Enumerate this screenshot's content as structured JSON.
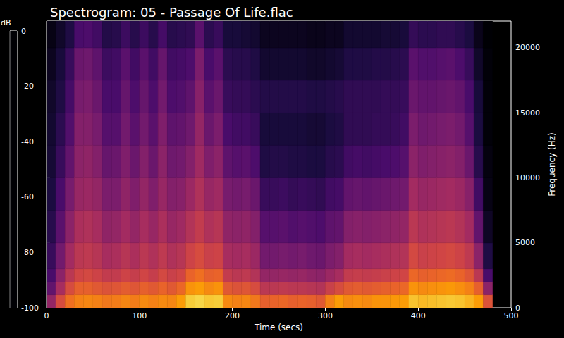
{
  "chart_data": {
    "type": "heatmap",
    "title": "Spectrogram: 05 - Passage Of Life.flac",
    "x_label": "Time (secs)",
    "y_label": "Frequency (Hz)",
    "xlim": [
      0,
      500
    ],
    "xticks": [
      0,
      100,
      200,
      300,
      400,
      500
    ],
    "ylim": [
      0,
      22050
    ],
    "yticks": [
      0,
      5000,
      10000,
      15000,
      20000
    ],
    "grid": false,
    "colorbar": {
      "label": "dB",
      "range": [
        -100,
        0
      ],
      "ticks": [
        0,
        -20,
        -40,
        -60,
        -80,
        -100
      ]
    },
    "cells": {
      "time_edges": [
        0,
        10,
        20,
        30,
        40,
        50,
        60,
        70,
        80,
        90,
        100,
        110,
        120,
        130,
        140,
        150,
        160,
        170,
        180,
        190,
        200,
        210,
        220,
        230,
        240,
        250,
        260,
        270,
        280,
        290,
        300,
        310,
        320,
        330,
        340,
        350,
        360,
        370,
        380,
        390,
        400,
        410,
        420,
        430,
        440,
        450,
        460,
        470,
        480
      ],
      "frequency_edges": [
        0,
        1000,
        2000,
        3000,
        5000,
        7500,
        10000,
        12500,
        15000,
        17500,
        20000,
        22050
      ],
      "db": [
        [
          -60,
          -72,
          -78,
          -82,
          -86,
          -89,
          -91,
          -92,
          -93,
          -95,
          -97
        ],
        [
          -42,
          -55,
          -62,
          -68,
          -74,
          -78,
          -82,
          -85,
          -88,
          -90,
          -93
        ],
        [
          -32,
          -42,
          -50,
          -56,
          -62,
          -67,
          -72,
          -76,
          -79,
          -82,
          -88
        ],
        [
          -28,
          -36,
          -44,
          -50,
          -54,
          -59,
          -62,
          -64,
          -67,
          -70,
          -78
        ],
        [
          -27,
          -36,
          -43,
          -49,
          -53,
          -58,
          -61,
          -64,
          -66,
          -69,
          -77
        ],
        [
          -28,
          -38,
          -45,
          -51,
          -55,
          -60,
          -64,
          -67,
          -70,
          -73,
          -80
        ],
        [
          -30,
          -40,
          -48,
          -55,
          -61,
          -66,
          -71,
          -75,
          -78,
          -81,
          -87
        ],
        [
          -29,
          -39,
          -48,
          -54,
          -60,
          -66,
          -70,
          -75,
          -78,
          -80,
          -86
        ],
        [
          -27,
          -37,
          -45,
          -51,
          -56,
          -61,
          -65,
          -68,
          -71,
          -74,
          -81
        ],
        [
          -29,
          -39,
          -47,
          -54,
          -60,
          -65,
          -70,
          -74,
          -77,
          -80,
          -86
        ],
        [
          -26,
          -36,
          -44,
          -50,
          -55,
          -60,
          -64,
          -68,
          -71,
          -74,
          -81
        ],
        [
          -28,
          -38,
          -47,
          -53,
          -59,
          -65,
          -70,
          -74,
          -77,
          -80,
          -86
        ],
        [
          -26,
          -35,
          -43,
          -49,
          -54,
          -59,
          -62,
          -65,
          -68,
          -71,
          -79
        ],
        [
          -27,
          -38,
          -46,
          -53,
          -59,
          -64,
          -69,
          -73,
          -77,
          -80,
          -86
        ],
        [
          -22,
          -34,
          -44,
          -51,
          -57,
          -63,
          -68,
          -72,
          -76,
          -79,
          -85
        ],
        [
          -12,
          -24,
          -35,
          -45,
          -52,
          -58,
          -64,
          -69,
          -73,
          -77,
          -84
        ],
        [
          -10,
          -22,
          -32,
          -42,
          -48,
          -53,
          -57,
          -60,
          -63,
          -66,
          -74
        ],
        [
          -13,
          -26,
          -36,
          -46,
          -53,
          -59,
          -65,
          -70,
          -74,
          -78,
          -85
        ],
        [
          -12,
          -24,
          -35,
          -45,
          -51,
          -57,
          -62,
          -66,
          -70,
          -74,
          -82
        ],
        [
          -26,
          -38,
          -48,
          -55,
          -61,
          -67,
          -73,
          -78,
          -82,
          -85,
          -90
        ],
        [
          -28,
          -40,
          -50,
          -56,
          -62,
          -68,
          -75,
          -80,
          -83,
          -86,
          -90
        ],
        [
          -27,
          -39,
          -49,
          -55,
          -61,
          -67,
          -74,
          -80,
          -83,
          -86,
          -91
        ],
        [
          -30,
          -42,
          -52,
          -58,
          -64,
          -70,
          -77,
          -82,
          -85,
          -88,
          -92
        ],
        [
          -36,
          -50,
          -60,
          -68,
          -75,
          -82,
          -88,
          -90,
          -87,
          -92,
          -95
        ],
        [
          -35,
          -50,
          -60,
          -68,
          -75,
          -82,
          -87,
          -90,
          -87,
          -92,
          -95
        ],
        [
          -34,
          -49,
          -59,
          -67,
          -74,
          -81,
          -87,
          -90,
          -87,
          -92,
          -95
        ],
        [
          -36,
          -50,
          -60,
          -68,
          -76,
          -83,
          -88,
          -90,
          -87,
          -92,
          -95
        ],
        [
          -35,
          -50,
          -59,
          -67,
          -75,
          -82,
          -88,
          -90,
          -87,
          -92,
          -95
        ],
        [
          -36,
          -51,
          -61,
          -69,
          -76,
          -83,
          -89,
          -91,
          -88,
          -93,
          -96
        ],
        [
          -38,
          -52,
          -62,
          -70,
          -77,
          -84,
          -89,
          -91,
          -88,
          -93,
          -96
        ],
        [
          -28,
          -46,
          -58,
          -66,
          -73,
          -80,
          -86,
          -89,
          -87,
          -92,
          -95
        ],
        [
          -22,
          -42,
          -55,
          -64,
          -72,
          -79,
          -85,
          -88,
          -86,
          -91,
          -95
        ],
        [
          -26,
          -38,
          -48,
          -56,
          -64,
          -72,
          -80,
          -84,
          -84,
          -88,
          -92
        ],
        [
          -25,
          -37,
          -47,
          -55,
          -63,
          -71,
          -79,
          -84,
          -84,
          -88,
          -92
        ],
        [
          -26,
          -38,
          -48,
          -56,
          -64,
          -72,
          -80,
          -84,
          -84,
          -88,
          -92
        ],
        [
          -24,
          -37,
          -47,
          -55,
          -63,
          -71,
          -79,
          -83,
          -84,
          -87,
          -92
        ],
        [
          -24,
          -36,
          -46,
          -54,
          -62,
          -70,
          -78,
          -83,
          -83,
          -87,
          -91
        ],
        [
          -23,
          -35,
          -45,
          -53,
          -61,
          -69,
          -77,
          -82,
          -83,
          -86,
          -91
        ],
        [
          -22,
          -34,
          -44,
          -52,
          -60,
          -68,
          -75,
          -80,
          -82,
          -85,
          -90
        ],
        [
          -14,
          -24,
          -34,
          -43,
          -50,
          -56,
          -62,
          -66,
          -70,
          -74,
          -83
        ],
        [
          -16,
          -26,
          -36,
          -46,
          -53,
          -59,
          -65,
          -69,
          -72,
          -76,
          -85
        ],
        [
          -15,
          -25,
          -35,
          -45,
          -52,
          -58,
          -64,
          -68,
          -72,
          -76,
          -85
        ],
        [
          -14,
          -24,
          -34,
          -44,
          -51,
          -57,
          -63,
          -67,
          -71,
          -75,
          -84
        ],
        [
          -13,
          -23,
          -33,
          -43,
          -50,
          -56,
          -62,
          -66,
          -70,
          -74,
          -84
        ],
        [
          -14,
          -25,
          -35,
          -45,
          -52,
          -58,
          -64,
          -68,
          -72,
          -77,
          -86
        ],
        [
          -17,
          -28,
          -39,
          -49,
          -56,
          -63,
          -70,
          -75,
          -78,
          -82,
          -89
        ],
        [
          -22,
          -36,
          -50,
          -62,
          -72,
          -80,
          -86,
          -89,
          -90,
          -93,
          -96
        ],
        [
          -40,
          -62,
          -78,
          -88,
          -94,
          -97,
          -98,
          -99,
          -99,
          -99,
          -100
        ]
      ]
    }
  }
}
